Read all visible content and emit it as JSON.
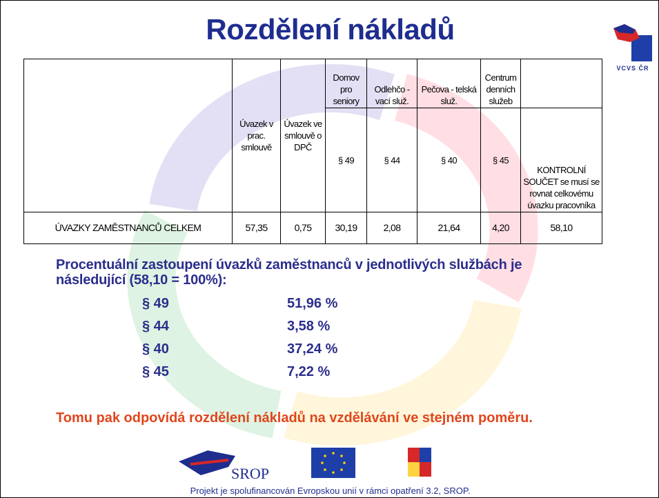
{
  "title": "Rozdělení nákladů",
  "logo_caption": "VCVS ČR",
  "table": {
    "headers": [
      {
        "label": "Úvazek v prac. smlouvě"
      },
      {
        "label": "Úvazek ve smlouvě o DPČ"
      },
      {
        "label": "Domov pro seniory",
        "section": "§ 49"
      },
      {
        "label": "Odlehčo - vací služ.",
        "section": "§ 44"
      },
      {
        "label": "Pečova - telská služ.",
        "section": "§ 40"
      },
      {
        "label": "Centrum denních služeb",
        "section": "§ 45"
      },
      {
        "label": "KONTROLNÍ SOUČET se musí se rovnat celkovému úvazku pracovníka"
      }
    ],
    "row": {
      "label": "ÚVAZKY ZAMĚSTNANCŮ CELKEM",
      "cells": [
        "57,35",
        "0,75",
        "30,19",
        "2,08",
        "21,64",
        "4,20",
        "58,10"
      ]
    }
  },
  "paragraph": "Procentuální zastoupení úvazků zaměstnanců v jednotlivých službách je následující (58,10 = 100%):",
  "items": [
    {
      "code": "§ 49",
      "share": "51,96 %"
    },
    {
      "code": "§ 44",
      "share": "3,58 %"
    },
    {
      "code": "§ 40",
      "share": "37,24 %"
    },
    {
      "code": "§ 45",
      "share": "7,22 %"
    }
  ],
  "note": "Tomu pak odpovídá rozdělení nákladů na vzdělávání ve stejném poměru.",
  "srop_logo": "SROP",
  "footer": "Projekt je spolufinancován Evropskou unií v rámci opatření 3.2, SROP."
}
